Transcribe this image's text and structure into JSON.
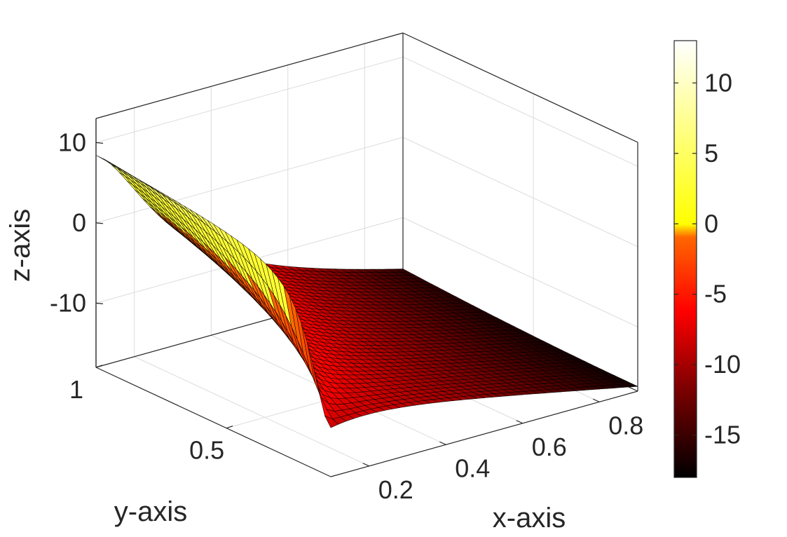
{
  "chart_data": {
    "type": "surface",
    "colormap": "hot",
    "xlabel": "x-axis",
    "ylabel": "y-axis",
    "zlabel": "z-axis",
    "xlim": [
      0.1,
      0.9
    ],
    "ylim": [
      0.1,
      1
    ],
    "zlim": [
      -18,
      13
    ],
    "x_ticks": [
      0.2,
      0.4,
      0.6,
      0.8
    ],
    "x_tick_labels": [
      "0.2",
      "0.4",
      "0.6",
      "0.8"
    ],
    "y_ticks": [
      0.5,
      1
    ],
    "y_tick_labels": [
      "0.5",
      "1"
    ],
    "z_ticks": [
      -10,
      0,
      10
    ],
    "z_tick_labels": [
      "-10",
      "0",
      "10"
    ],
    "grid": true,
    "mesh": "40x40 black edges",
    "colorbar": {
      "location": "right",
      "range": [
        -18,
        13
      ],
      "ticks": [
        -15,
        -10,
        -5,
        0,
        5,
        10
      ],
      "tick_labels": [
        "-15",
        "-10",
        "-5",
        "0",
        "5",
        "10"
      ]
    },
    "colors": {
      "surface_positive": "#ffff33",
      "surface_negative": "#ff4400",
      "surface_min": "#000000",
      "axes": "#262626",
      "grid": "#dcdcdc"
    }
  }
}
